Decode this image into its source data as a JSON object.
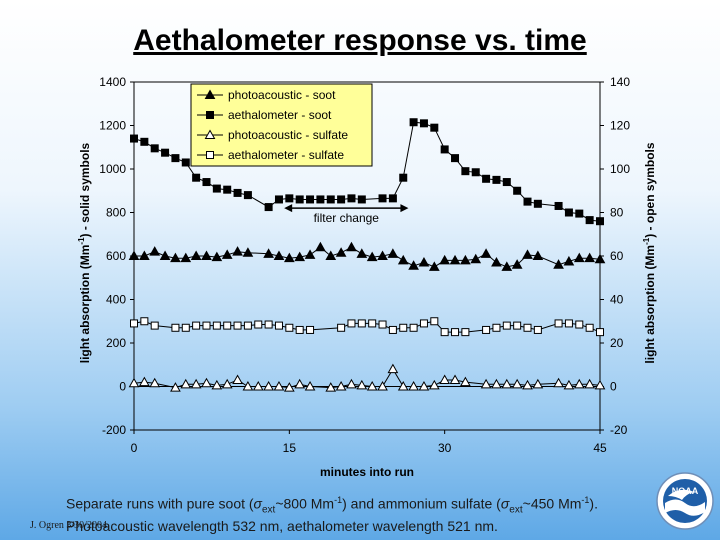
{
  "slide": {
    "title": "Aethalometer response vs. time",
    "credit": "J. Ogren  3/30/2004",
    "caption": {
      "p1": "Separate runs with pure soot (",
      "sigma1": "σ",
      "sub1": "ext",
      "p2": "~800 Mm",
      "sup1": "-1",
      "p3": ") and ammonium sulfate (",
      "sigma2": "σ",
      "sub2": "ext",
      "p4": "~450 Mm",
      "sup2": "-1",
      "p5": ").  Photoacoustic wavelength 532 nm, aethalometer wavelength 521 nm."
    },
    "logo_text": "NOAA"
  },
  "chart_data": {
    "type": "line",
    "title": "Aethalometer response vs. time",
    "xlabel": "minutes into run",
    "ylabel_left": "light absorption (Mm-1) - solid symbols",
    "ylabel_right": "light absorption (Mm-1) - open symbols",
    "xlim": [
      0,
      45
    ],
    "xticks": [
      0,
      15,
      30,
      45
    ],
    "ylim_left": [
      -200,
      1400
    ],
    "yticks_left": [
      -200,
      0,
      200,
      400,
      600,
      800,
      1000,
      1200,
      1400
    ],
    "ylim_right": [
      -20,
      140
    ],
    "yticks_right": [
      -20,
      0,
      20,
      40,
      60,
      80,
      100,
      120,
      140
    ],
    "grid": false,
    "legend_position": "top-left",
    "annotation": {
      "text": "filter change",
      "x_start": 14.5,
      "x_end": 26.5,
      "y": 820
    },
    "series": [
      {
        "name": "photoacoustic - soot",
        "axis": "left",
        "marker": "triangle",
        "filled": true,
        "x": [
          0,
          1,
          2,
          3,
          4,
          5,
          6,
          7,
          8,
          9,
          10,
          11,
          13,
          14,
          15,
          16,
          17,
          18,
          19,
          20,
          21,
          22,
          23,
          24,
          25,
          26,
          27,
          28,
          29,
          30,
          31,
          32,
          33,
          34,
          35,
          36,
          37,
          38,
          39,
          41,
          42,
          43,
          44,
          45
        ],
        "y": [
          600,
          600,
          620,
          600,
          590,
          590,
          600,
          600,
          595,
          605,
          620,
          615,
          610,
          600,
          590,
          595,
          605,
          640,
          600,
          615,
          640,
          610,
          595,
          600,
          610,
          580,
          555,
          570,
          550,
          580,
          580,
          580,
          585,
          610,
          570,
          550,
          560,
          605,
          600,
          560,
          575,
          590,
          590,
          585
        ]
      },
      {
        "name": "aethalometer - soot",
        "axis": "left",
        "marker": "square",
        "filled": true,
        "x": [
          0,
          1,
          2,
          3,
          4,
          5,
          6,
          7,
          8,
          9,
          10,
          11,
          13,
          14,
          15,
          16,
          17,
          18,
          19,
          20,
          21,
          22,
          24,
          25,
          26,
          27,
          28,
          29,
          30,
          31,
          32,
          33,
          34,
          35,
          36,
          37,
          38,
          39,
          41,
          42,
          43,
          44,
          45
        ],
        "y": [
          1140,
          1125,
          1095,
          1075,
          1050,
          1030,
          960,
          940,
          910,
          905,
          890,
          880,
          825,
          860,
          865,
          860,
          860,
          860,
          860,
          860,
          865,
          860,
          865,
          865,
          960,
          1215,
          1210,
          1190,
          1090,
          1050,
          990,
          985,
          955,
          950,
          940,
          900,
          850,
          840,
          830,
          800,
          795,
          765,
          760
        ]
      },
      {
        "name": "photoacoustic - sulfate",
        "axis": "right",
        "marker": "triangle",
        "filled": false,
        "x": [
          0,
          1,
          2,
          4,
          5,
          6,
          7,
          8,
          9,
          10,
          11,
          12,
          13,
          14,
          15,
          16,
          17,
          19,
          20,
          21,
          22,
          23,
          24,
          25,
          26,
          27,
          28,
          29,
          30,
          31,
          32,
          34,
          35,
          36,
          37,
          38,
          39,
          41,
          42,
          43,
          44,
          45
        ],
        "y": [
          1.5,
          2,
          1.5,
          -0.5,
          1,
          1,
          1.5,
          0.5,
          1,
          3,
          0,
          0,
          0,
          0,
          -0.5,
          1,
          0,
          -0.5,
          0,
          1,
          0.5,
          0,
          0,
          8,
          0,
          0,
          0,
          0.5,
          3,
          3,
          2,
          1,
          1,
          1,
          1,
          0.5,
          1,
          1.5,
          0.5,
          1,
          1,
          0.5
        ]
      },
      {
        "name": "aethalometer - sulfate",
        "axis": "right",
        "marker": "square",
        "filled": false,
        "x": [
          0,
          1,
          2,
          4,
          5,
          6,
          7,
          8,
          9,
          10,
          11,
          12,
          13,
          14,
          15,
          16,
          17,
          20,
          21,
          22,
          23,
          24,
          25,
          26,
          27,
          28,
          29,
          30,
          31,
          32,
          34,
          35,
          36,
          37,
          38,
          39,
          41,
          42,
          43,
          44,
          45
        ],
        "y": [
          29,
          30,
          28,
          27,
          27,
          28,
          28,
          28,
          28,
          28,
          28,
          28.5,
          28.5,
          28,
          27,
          26,
          26,
          27,
          29,
          29,
          29,
          28.5,
          26,
          27,
          27,
          29,
          30,
          25,
          25,
          25,
          26,
          27,
          28,
          28,
          27,
          26,
          29,
          29,
          28.5,
          27,
          25
        ]
      }
    ]
  }
}
